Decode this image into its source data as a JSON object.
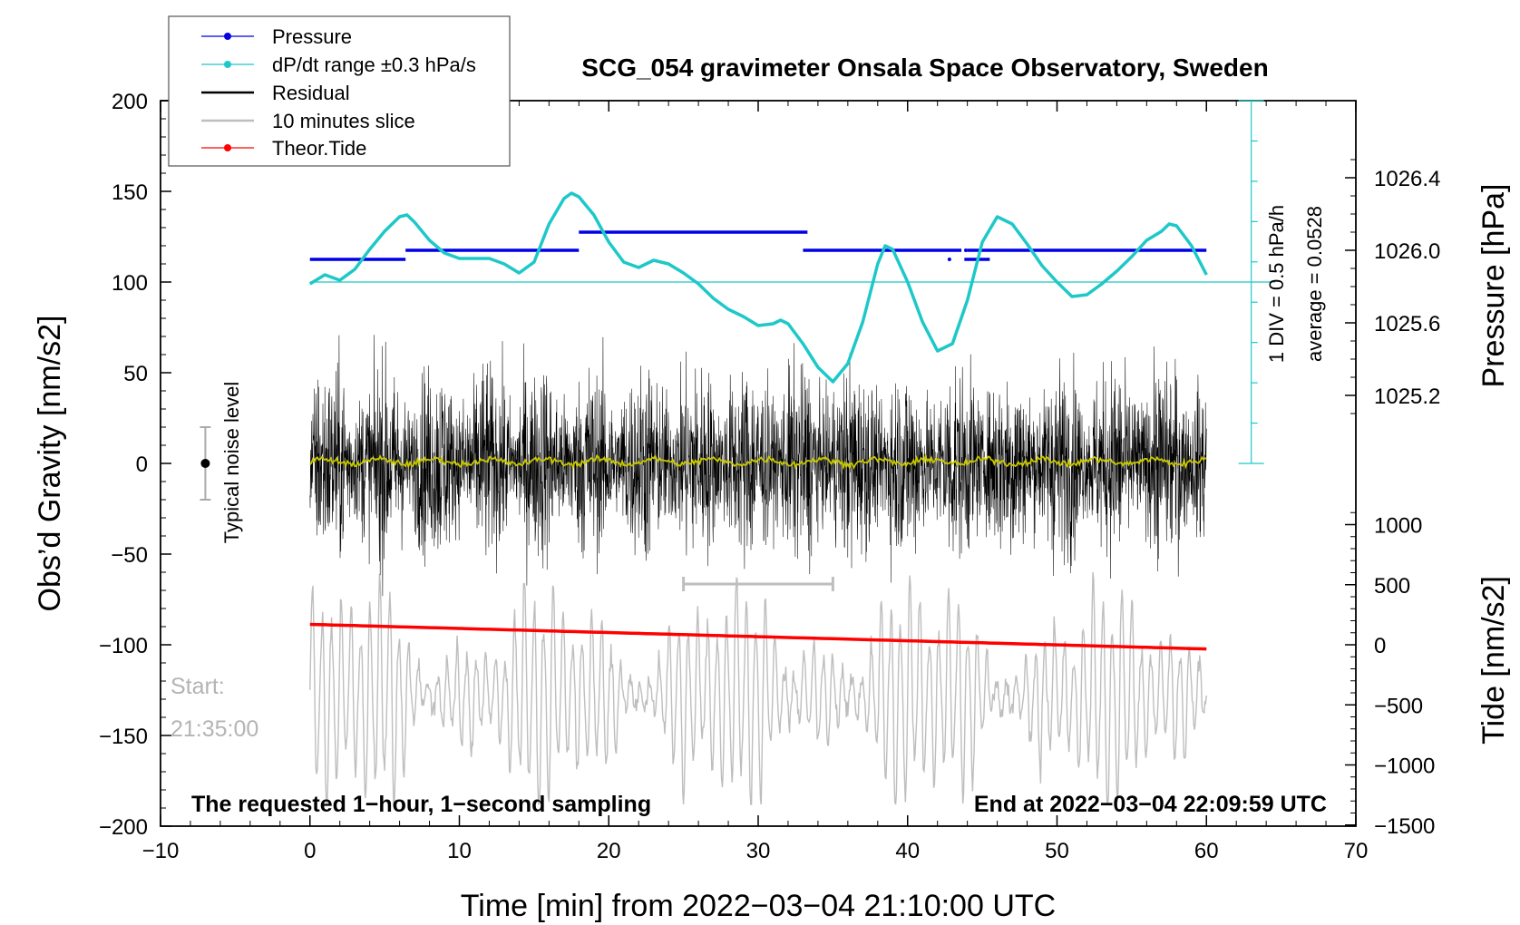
{
  "chart_data": {
    "type": "line",
    "title": "SCG_054 gravimeter Onsala Space Observatory, Sweden",
    "xlabel": "Time [min] from 2022−03−04 21:10:00 UTC",
    "ylabel_left": "Obs’d Gravity [nm/s2]",
    "ylabel_right_pressure": "Pressure [hPa]",
    "ylabel_right_tide": "Tide [nm/s2]",
    "xlim": [
      -10,
      70
    ],
    "ylim_left": [
      -200,
      200
    ],
    "x_ticks": [
      "−10",
      "0",
      "10",
      "20",
      "30",
      "40",
      "50",
      "60",
      "70"
    ],
    "y_ticks_left": [
      "200",
      "150",
      "100",
      "50",
      "0",
      "−50",
      "−100",
      "−150",
      "−200"
    ],
    "pressure_ticks": [
      "1026.4",
      "1026.0",
      "1025.6",
      "1025.2"
    ],
    "tide_ticks": [
      "1000",
      "500",
      "0",
      "−500",
      "−1000",
      "−1500"
    ],
    "legend": [
      "Pressure",
      "dP/dt range ±0.3 hPa/s",
      "Residual",
      "10 minutes slice",
      "Theor.Tide"
    ],
    "pressure_scale_label": "1 DIV = 0.5 hPa/h",
    "pressure_average_label": "average = 0.0528",
    "noise_label": "Typical noise level",
    "start_label": "Start:",
    "start_time": "21:35:00",
    "footer_left": "The requested 1−hour, 1−second sampling",
    "footer_right": "End at 2022−03−04 22:09:59 UTC",
    "colors": {
      "pressure": "#0000e6",
      "dpdt": "#1ec8c8",
      "residual": "#000000",
      "slice": "#bebebe",
      "tide": "#ff0000",
      "smoothed": "#c8c800"
    },
    "pressure_hpa": [
      {
        "x0": 0.0,
        "x1": 6.4,
        "y": 1025.95
      },
      {
        "x0": 6.4,
        "x1": 18.0,
        "y": 1026.0
      },
      {
        "x0": 18.0,
        "x1": 33.3,
        "y": 1026.1
      },
      {
        "x0": 33.0,
        "x1": 43.6,
        "y": 1026.0
      },
      {
        "x0": 44.0,
        "x1": 60.0,
        "y": 1026.0
      },
      {
        "x0": 43.8,
        "x1": 45.5,
        "y": 1025.95
      }
    ],
    "dpdt_x": [
      0,
      1,
      2,
      3,
      4,
      5,
      6,
      6.5,
      7,
      8,
      9,
      10,
      11,
      12,
      13,
      14,
      15,
      16,
      17,
      17.5,
      18,
      19,
      20,
      21,
      22,
      23,
      24,
      25,
      26,
      27,
      28,
      29,
      30,
      31,
      31.5,
      32,
      33,
      34,
      35,
      36,
      37,
      38,
      38.5,
      39,
      40,
      41,
      42,
      43,
      44,
      45,
      46,
      47,
      48,
      49,
      50,
      51,
      52,
      53,
      54,
      55,
      56,
      57,
      57.5,
      58,
      59,
      60
    ],
    "dpdt_y": [
      99,
      104,
      101,
      107,
      118,
      128,
      136,
      137,
      133,
      123,
      116,
      113,
      113,
      113,
      110,
      105,
      111,
      132,
      146,
      149,
      147,
      137,
      122,
      111,
      108,
      112,
      110,
      105,
      99,
      91,
      85,
      81,
      76,
      77,
      79,
      77,
      66,
      53,
      45,
      55,
      78,
      110,
      120,
      118,
      100,
      78,
      62,
      66,
      90,
      122,
      136,
      132,
      121,
      109,
      100,
      92,
      93,
      99,
      106,
      114,
      123,
      128,
      132,
      131,
      120,
      104
    ],
    "residual": {
      "x_range": [
        0,
        60
      ],
      "amplitude_nm_s2": 75
    },
    "smoothed_residual": {
      "x_range": [
        0,
        60
      ],
      "level_nm_s2": 1
    },
    "tide": {
      "x_range": [
        0,
        60
      ],
      "y_start": 170,
      "y_end": -35
    },
    "slice_bracket": {
      "x0": 25,
      "x1": 35
    },
    "noise_bar": {
      "x": -7,
      "y_low": -20,
      "y_high": 20
    }
  }
}
